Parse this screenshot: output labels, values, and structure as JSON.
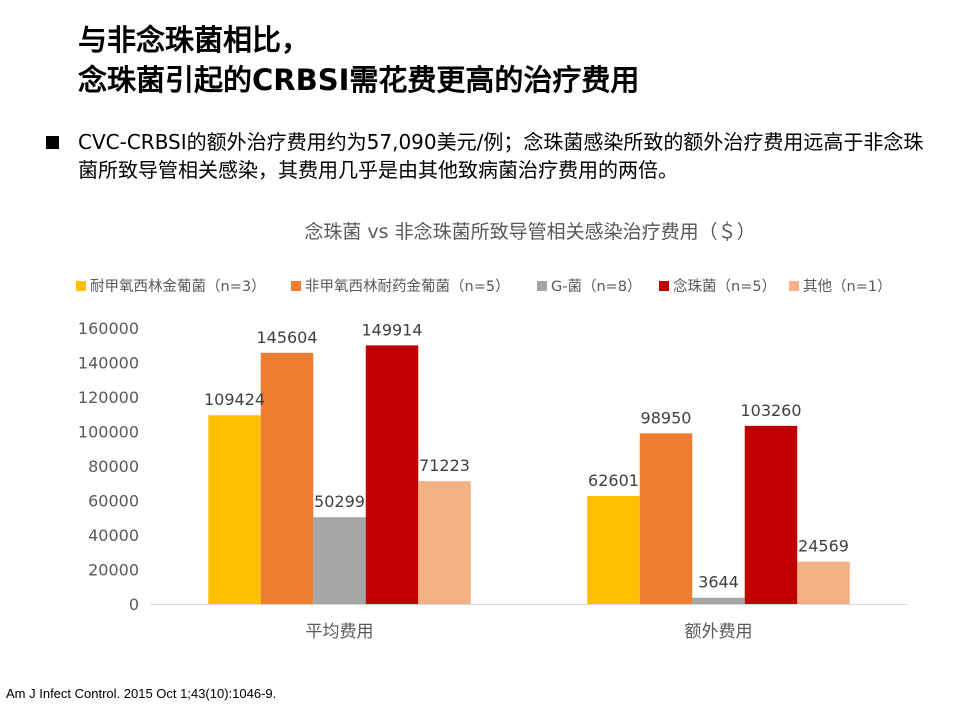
{
  "slide": {
    "title_line1": "与非念珠菌相比，",
    "title_line2": "念珠菌引起的CRBSI需花费更高的治疗费用",
    "bullet": "CVC-CRBSI的额外治疗费用约为57,090美元/例；念珠菌感染所致的额外治疗费用远高于非念珠菌所致导管相关感染，其费用几乎是由其他致病菌治疗费用的两倍。",
    "footnote": "Am J Infect Control. 2015 Oct 1;43(10):1046-9."
  },
  "chart_data": {
    "type": "bar",
    "title": "念珠菌 vs 非念珠菌所致导管相关感染治疗费用（＄）",
    "categories": [
      "平均费用",
      "额外费用"
    ],
    "series": [
      {
        "name": "耐甲氧西林金葡菌（n=3）",
        "color": "#FFC000",
        "values": [
          109424,
          62601
        ]
      },
      {
        "name": "非甲氧西林耐药金葡菌（n=5）",
        "color": "#ED7D31",
        "values": [
          145604,
          98950
        ]
      },
      {
        "name": "G-菌（n=8）",
        "color": "#A5A5A5",
        "values": [
          50299,
          3644
        ]
      },
      {
        "name": "念珠菌（n=5）",
        "color": "#C00000",
        "values": [
          149914,
          103260
        ]
      },
      {
        "name": "其他（n=1）",
        "color": "#F4B183",
        "values": [
          71223,
          24569
        ]
      }
    ],
    "ylim": [
      0,
      160000
    ],
    "yticks": [
      "0",
      "20000",
      "40000",
      "60000",
      "80000",
      "100000",
      "120000",
      "140000",
      "160000"
    ],
    "grid": false,
    "legend": "top",
    "xlabel": "",
    "ylabel": ""
  }
}
